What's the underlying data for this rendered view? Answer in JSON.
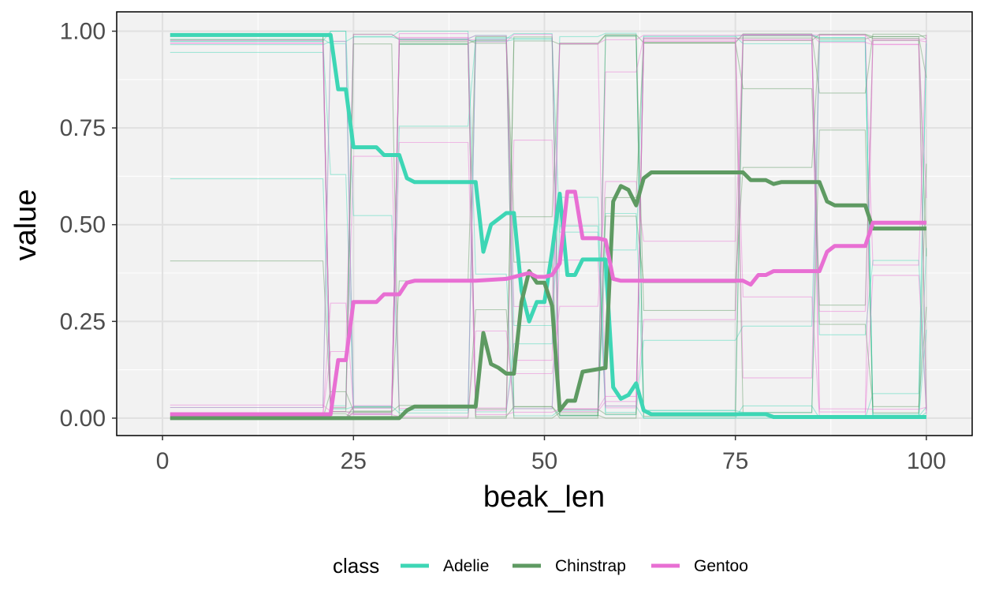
{
  "chart_data": {
    "type": "line",
    "title": "",
    "xlabel": "beak_len",
    "ylabel": "value",
    "xlim": [
      -6,
      106
    ],
    "ylim": [
      -0.045,
      1.05
    ],
    "x_ticks": [
      0,
      25,
      50,
      75,
      100
    ],
    "x_tick_labels": [
      "0",
      "25",
      "50",
      "75",
      "100"
    ],
    "y_ticks": [
      0,
      0.25,
      0.5,
      0.75,
      1.0
    ],
    "y_tick_labels": [
      "0.00",
      "0.25",
      "0.50",
      "0.75",
      "1.00"
    ],
    "grid": true,
    "background": "#f2f2f2",
    "legend": {
      "title": "class",
      "position": "bottom",
      "entries": [
        {
          "label": "Adelie",
          "color": "#3dd6b5"
        },
        {
          "label": "Chinstrap",
          "color": "#5e9a62"
        },
        {
          "label": "Gentoo",
          "color": "#e86fd3"
        }
      ]
    },
    "series": [
      {
        "name": "Adelie",
        "color": "#3dd6b5",
        "points": [
          [
            1,
            0.99
          ],
          [
            21,
            0.99
          ],
          [
            22,
            0.99
          ],
          [
            23,
            0.85
          ],
          [
            24,
            0.85
          ],
          [
            25,
            0.7
          ],
          [
            28,
            0.7
          ],
          [
            29,
            0.68
          ],
          [
            31,
            0.68
          ],
          [
            32,
            0.62
          ],
          [
            33,
            0.61
          ],
          [
            41,
            0.61
          ],
          [
            42,
            0.43
          ],
          [
            43,
            0.5
          ],
          [
            45,
            0.53
          ],
          [
            46,
            0.53
          ],
          [
            47,
            0.33
          ],
          [
            48,
            0.25
          ],
          [
            49,
            0.3
          ],
          [
            50,
            0.3
          ],
          [
            51,
            0.43
          ],
          [
            52,
            0.58
          ],
          [
            53,
            0.37
          ],
          [
            54,
            0.37
          ],
          [
            55,
            0.41
          ],
          [
            58,
            0.41
          ],
          [
            59,
            0.08
          ],
          [
            60,
            0.05
          ],
          [
            61,
            0.06
          ],
          [
            62,
            0.09
          ],
          [
            63,
            0.02
          ],
          [
            64,
            0.01
          ],
          [
            76,
            0.01
          ],
          [
            79,
            0.01
          ],
          [
            80,
            0.003
          ],
          [
            100,
            0.003
          ]
        ]
      },
      {
        "name": "Chinstrap",
        "color": "#5e9a62",
        "points": [
          [
            1,
            0.0
          ],
          [
            31,
            0.0
          ],
          [
            32,
            0.02
          ],
          [
            33,
            0.03
          ],
          [
            41,
            0.03
          ],
          [
            42,
            0.22
          ],
          [
            43,
            0.14
          ],
          [
            44,
            0.13
          ],
          [
            45,
            0.115
          ],
          [
            46,
            0.115
          ],
          [
            47,
            0.3
          ],
          [
            48,
            0.38
          ],
          [
            49,
            0.35
          ],
          [
            50,
            0.35
          ],
          [
            51,
            0.29
          ],
          [
            52,
            0.02
          ],
          [
            53,
            0.045
          ],
          [
            54,
            0.045
          ],
          [
            55,
            0.12
          ],
          [
            58,
            0.13
          ],
          [
            59,
            0.56
          ],
          [
            60,
            0.6
          ],
          [
            61,
            0.59
          ],
          [
            62,
            0.55
          ],
          [
            63,
            0.62
          ],
          [
            64,
            0.635
          ],
          [
            76,
            0.635
          ],
          [
            77,
            0.615
          ],
          [
            79,
            0.615
          ],
          [
            80,
            0.605
          ],
          [
            81,
            0.61
          ],
          [
            86,
            0.61
          ],
          [
            87,
            0.56
          ],
          [
            88,
            0.55
          ],
          [
            92,
            0.55
          ],
          [
            93,
            0.49
          ],
          [
            100,
            0.49
          ]
        ]
      },
      {
        "name": "Gentoo",
        "color": "#e86fd3",
        "points": [
          [
            1,
            0.01
          ],
          [
            21,
            0.01
          ],
          [
            22,
            0.01
          ],
          [
            23,
            0.15
          ],
          [
            24,
            0.15
          ],
          [
            25,
            0.3
          ],
          [
            28,
            0.3
          ],
          [
            29,
            0.32
          ],
          [
            31,
            0.32
          ],
          [
            32,
            0.35
          ],
          [
            33,
            0.355
          ],
          [
            41,
            0.355
          ],
          [
            45,
            0.36
          ],
          [
            47,
            0.37
          ],
          [
            48,
            0.375
          ],
          [
            49,
            0.365
          ],
          [
            50,
            0.365
          ],
          [
            51,
            0.37
          ],
          [
            52,
            0.4
          ],
          [
            53,
            0.585
          ],
          [
            54,
            0.585
          ],
          [
            55,
            0.465
          ],
          [
            57,
            0.465
          ],
          [
            58,
            0.46
          ],
          [
            59,
            0.36
          ],
          [
            60,
            0.355
          ],
          [
            76,
            0.355
          ],
          [
            77,
            0.345
          ],
          [
            78,
            0.37
          ],
          [
            79,
            0.37
          ],
          [
            80,
            0.38
          ],
          [
            86,
            0.38
          ],
          [
            87,
            0.43
          ],
          [
            88,
            0.445
          ],
          [
            92,
            0.445
          ],
          [
            93,
            0.505
          ],
          [
            100,
            0.505
          ]
        ]
      }
    ]
  }
}
